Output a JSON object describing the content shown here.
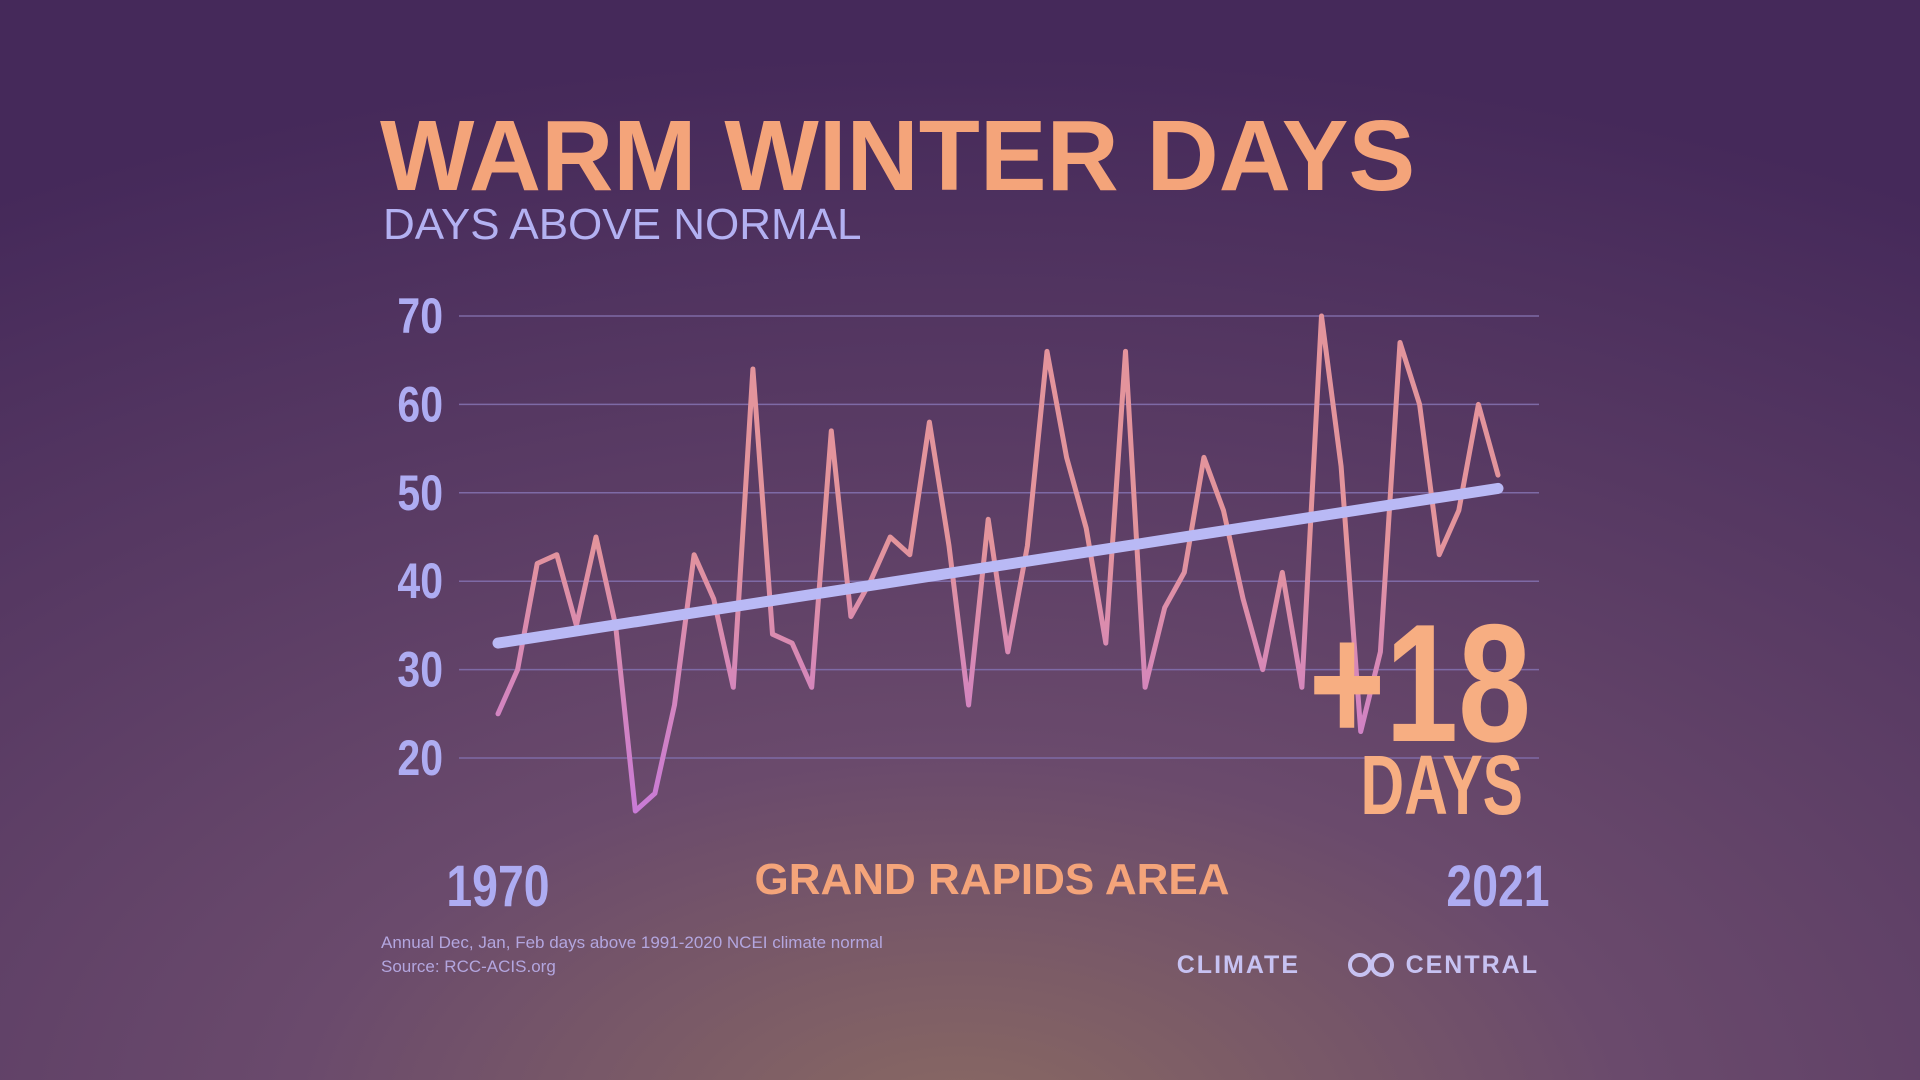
{
  "chart_data": {
    "type": "line",
    "title": "WARM WINTER DAYS",
    "subtitle": "DAYS ABOVE NORMAL",
    "x_label": "GRAND RAPIDS AREA",
    "x": [
      1970,
      1971,
      1972,
      1973,
      1974,
      1975,
      1976,
      1977,
      1978,
      1979,
      1980,
      1981,
      1982,
      1983,
      1984,
      1985,
      1986,
      1987,
      1988,
      1989,
      1990,
      1991,
      1992,
      1993,
      1994,
      1995,
      1996,
      1997,
      1998,
      1999,
      2000,
      2001,
      2002,
      2003,
      2004,
      2005,
      2006,
      2007,
      2008,
      2009,
      2010,
      2011,
      2012,
      2013,
      2014,
      2015,
      2016,
      2017,
      2018,
      2019,
      2020,
      2021
    ],
    "series": [
      {
        "color": "#e3949c",
        "low_color": "#c87ad8",
        "values": [
          25,
          30,
          42,
          43,
          35,
          45,
          35,
          14,
          16,
          26,
          43,
          38,
          28,
          64,
          34,
          33,
          28,
          57,
          36,
          40,
          45,
          43,
          58,
          44,
          26,
          47,
          32,
          44,
          66,
          54,
          46,
          33,
          66,
          28,
          37,
          41,
          54,
          48,
          38,
          30,
          41,
          28,
          70,
          53,
          23,
          32,
          67,
          60,
          43,
          48,
          60,
          52
        ]
      }
    ],
    "trend": {
      "x": [
        1970,
        2021
      ],
      "values": [
        33,
        50.5
      ],
      "color": "#b9b9f5"
    },
    "xlim": [
      1970,
      2021
    ],
    "xticks": [
      1970,
      2021
    ],
    "ylim": [
      13,
      70
    ],
    "yticks": [
      20,
      30,
      40,
      50,
      60,
      70
    ],
    "grid": true,
    "annotations": [
      "+18",
      "DAYS"
    ],
    "footnotes": [
      "Annual Dec, Jan, Feb days above 1991-2020 NCEI climate normal",
      "Source: RCC-ACIS.org"
    ],
    "logo": {
      "left": "CLIMATE",
      "right": "CENTRAL"
    }
  }
}
